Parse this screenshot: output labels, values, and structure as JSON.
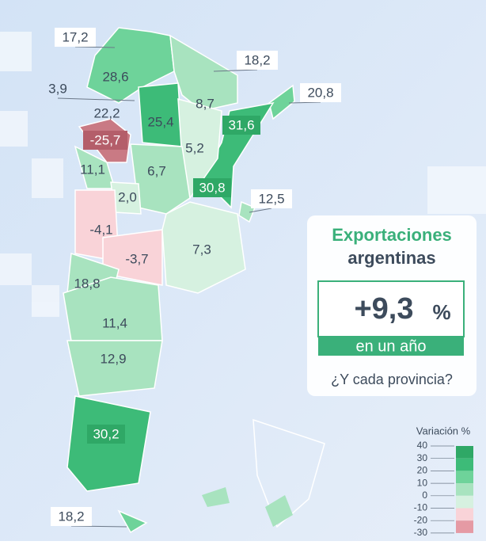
{
  "map": {
    "province_labels": [
      "17,2",
      "18,2",
      "20,8",
      "3,9",
      "28,6",
      "22,2",
      "8,7",
      "25,4",
      "31,6",
      "-25,7",
      "5,2",
      "11,1",
      "6,7",
      "30,8",
      "12,5",
      "2,0",
      "-4,1",
      "7,3",
      "-3,7",
      "18,8",
      "11,4",
      "12,9",
      "30,2",
      "18,2"
    ]
  },
  "panel": {
    "title": "Exportaciones",
    "subtitle": "argentinas",
    "headline": "+9,3",
    "headline_unit": "%",
    "period": "en un año",
    "question": "¿Y cada provincia?"
  },
  "legend": {
    "title": "Variación %",
    "ticks": [
      40,
      30,
      20,
      10,
      0,
      -10,
      -20,
      -30
    ]
  }
}
